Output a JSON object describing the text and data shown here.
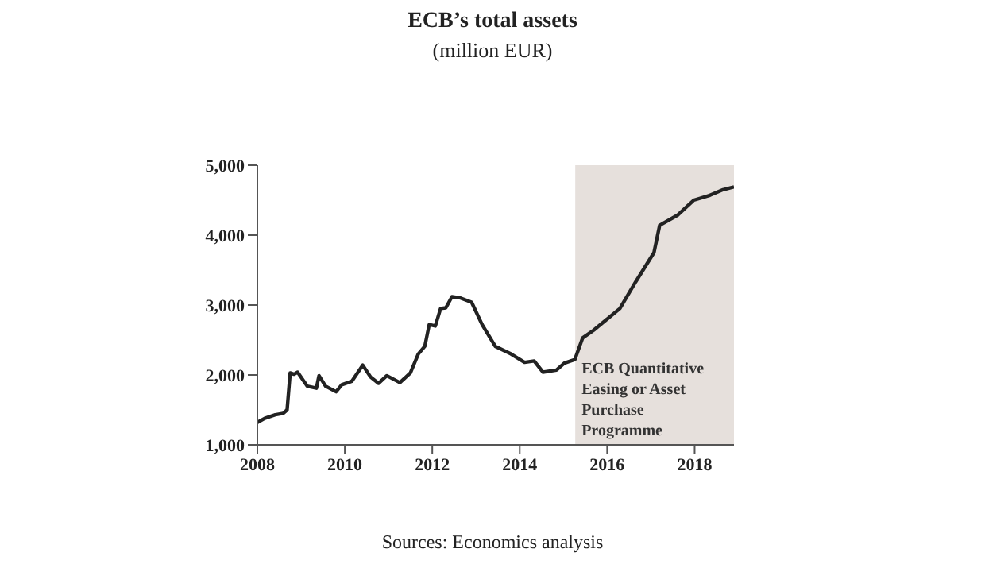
{
  "chart_data": {
    "type": "line",
    "title": "ECB’s total assets",
    "subtitle": "(million EUR)",
    "x": [
      2008.0,
      2008.17,
      2008.41,
      2008.59,
      2008.68,
      2008.75,
      2008.84,
      2008.92,
      2009.14,
      2009.35,
      2009.41,
      2009.56,
      2009.8,
      2009.93,
      2010.16,
      2010.41,
      2010.59,
      2010.77,
      2010.96,
      2011.26,
      2011.5,
      2011.68,
      2011.83,
      2011.93,
      2012.07,
      2012.19,
      2012.31,
      2012.45,
      2012.65,
      2012.9,
      2013.14,
      2013.44,
      2013.8,
      2014.11,
      2014.33,
      2014.53,
      2014.84,
      2015.02,
      2015.26,
      2015.44,
      2015.69,
      2016.29,
      2016.65,
      2017.07,
      2017.2,
      2017.62,
      2017.98,
      2018.35,
      2018.65,
      2018.9
    ],
    "series": [
      {
        "color": "#222222",
        "values": [
          1320,
          1380,
          1430,
          1450,
          1500,
          2030,
          2010,
          2040,
          1840,
          1810,
          1990,
          1840,
          1760,
          1860,
          1910,
          2140,
          1970,
          1880,
          1990,
          1890,
          2030,
          2300,
          2410,
          2720,
          2700,
          2950,
          2960,
          3120,
          3100,
          3040,
          2720,
          2410,
          2300,
          2180,
          2200,
          2040,
          2070,
          2170,
          2220,
          2530,
          2640,
          2950,
          3330,
          3750,
          4140,
          4290,
          4500,
          4570,
          4650,
          4690
        ]
      }
    ],
    "xlim": [
      2008,
      2018.9
    ],
    "xticks": [
      2008,
      2010,
      2012,
      2014,
      2016,
      2018
    ],
    "ylim": [
      1000,
      5000
    ],
    "yticks": [
      {
        "value": 1000,
        "label": "1,000"
      },
      {
        "value": 2000,
        "label": "2,000"
      },
      {
        "value": 3000,
        "label": "3,000"
      },
      {
        "value": 4000,
        "label": "4,000"
      },
      {
        "value": 5000,
        "label": "5,000"
      }
    ],
    "bands": [
      {
        "axis": "x",
        "from": 2015.27,
        "to": 2018.9,
        "label": "ECB Quantitative Easing or Asset Purchase Programme",
        "color": "#e6e0dc"
      }
    ],
    "grid": false,
    "legend": false,
    "marker": "none",
    "line_style": "solid",
    "annotations": [
      "Sources: Economics analysis"
    ]
  }
}
